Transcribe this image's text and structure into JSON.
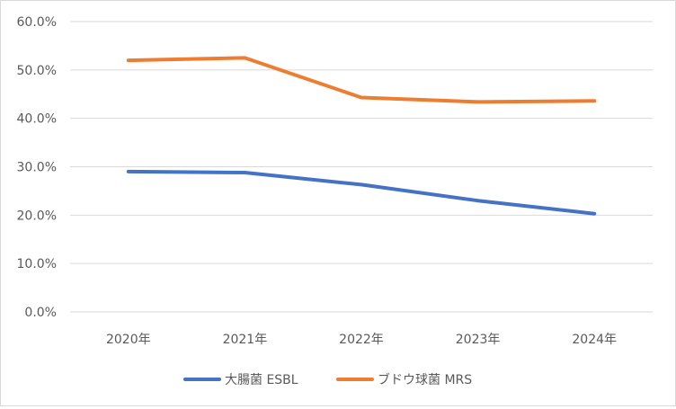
{
  "chart_data": {
    "type": "line",
    "title": "",
    "xlabel": "",
    "ylabel": "",
    "categories": [
      "2020年",
      "2021年",
      "2022年",
      "2023年",
      "2024年"
    ],
    "y_ticks": [
      "0.0%",
      "10.0%",
      "20.0%",
      "30.0%",
      "40.0%",
      "50.0%",
      "60.0%"
    ],
    "ylim": [
      0,
      60
    ],
    "grid": true,
    "legend_position": "bottom",
    "series": [
      {
        "name": "大腸菌 ESBL",
        "color": "#4472C4",
        "values": [
          29.0,
          28.8,
          26.3,
          23.0,
          20.3
        ]
      },
      {
        "name": "ブドウ球菌 MRS",
        "color": "#ED7D31",
        "values": [
          52.0,
          52.5,
          44.3,
          43.4,
          43.6
        ]
      }
    ]
  }
}
